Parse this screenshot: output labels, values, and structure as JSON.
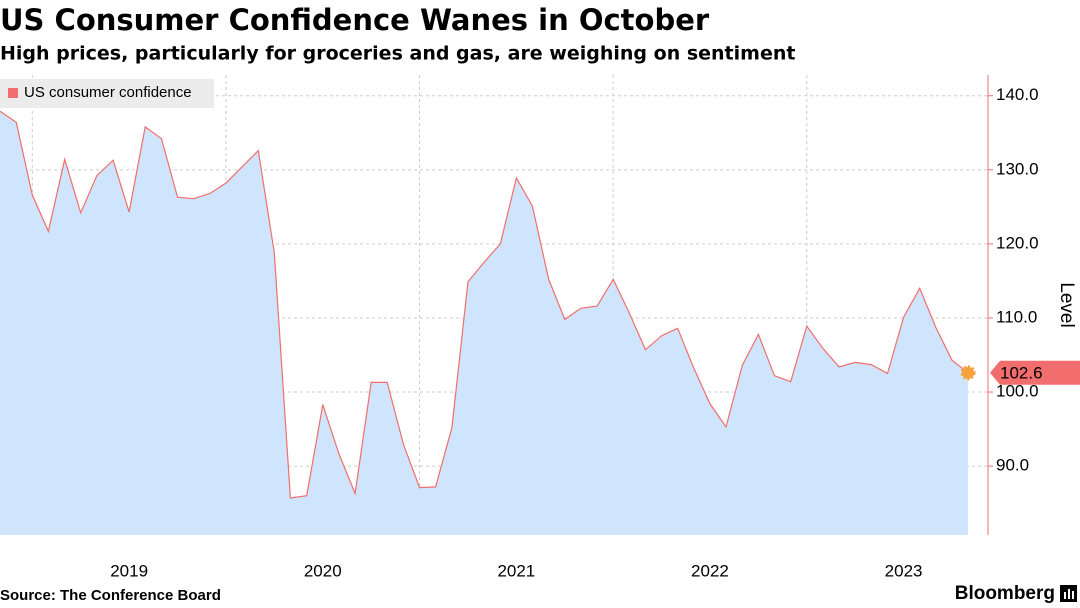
{
  "chart_data": {
    "type": "area",
    "title": "US Consumer Confidence Wanes in October",
    "subtitle": "High prices, particularly for groceries and gas, are weighing on sentiment",
    "y_axis_label": "Level",
    "source": "Source: The Conference Board",
    "brand": "Bloomberg",
    "legend": "top-left",
    "grid": true,
    "x": [
      2018.833,
      2018.917,
      2019.0,
      2019.083,
      2019.167,
      2019.25,
      2019.333,
      2019.417,
      2019.5,
      2019.583,
      2019.667,
      2019.75,
      2019.833,
      2019.917,
      2020.0,
      2020.083,
      2020.167,
      2020.25,
      2020.333,
      2020.417,
      2020.5,
      2020.583,
      2020.667,
      2020.75,
      2020.833,
      2020.917,
      2021.0,
      2021.083,
      2021.167,
      2021.25,
      2021.333,
      2021.417,
      2021.5,
      2021.583,
      2021.667,
      2021.75,
      2021.833,
      2021.917,
      2022.0,
      2022.083,
      2022.167,
      2022.25,
      2022.333,
      2022.417,
      2022.5,
      2022.583,
      2022.667,
      2022.75,
      2022.833,
      2022.917,
      2023.0,
      2023.083,
      2023.167,
      2023.25,
      2023.333,
      2023.417,
      2023.5,
      2023.583,
      2023.667,
      2023.75,
      2023.833
    ],
    "series": [
      {
        "name": "US consumer confidence",
        "color": "#f26d6d",
        "fill": "#cfe5fd",
        "values": [
          137.9,
          136.4,
          126.6,
          121.7,
          131.4,
          124.2,
          129.2,
          131.3,
          124.3,
          135.8,
          134.2,
          126.3,
          126.1,
          126.8,
          128.2,
          130.4,
          132.6,
          118.8,
          85.7,
          86.0,
          98.3,
          91.7,
          86.3,
          101.3,
          101.3,
          92.9,
          87.1,
          87.2,
          95.2,
          114.9,
          117.5,
          120.0,
          128.9,
          125.1,
          115.2,
          109.8,
          111.3,
          111.6,
          115.2,
          110.7,
          105.7,
          107.6,
          108.6,
          103.2,
          98.4,
          95.3,
          103.6,
          107.8,
          102.2,
          101.4,
          108.9,
          105.9,
          103.4,
          104.0,
          103.7,
          102.5,
          110.1,
          114.0,
          108.7,
          104.3,
          102.6
        ]
      }
    ],
    "xlim": [
      2018.833,
      2023.936
    ],
    "xgrid": [
      2019,
      2020,
      2021,
      2022,
      2023
    ],
    "xticks": [
      {
        "value": 2019.5,
        "label": "2019"
      },
      {
        "value": 2020.5,
        "label": "2020"
      },
      {
        "value": 2021.5,
        "label": "2021"
      },
      {
        "value": 2022.5,
        "label": "2022"
      },
      {
        "value": 2023.5,
        "label": "2023"
      }
    ],
    "ylim": [
      80.7,
      142.8
    ],
    "yticks": [
      {
        "value": 90,
        "label": "90.0"
      },
      {
        "value": 100,
        "label": "100.0"
      },
      {
        "value": 110,
        "label": "110.0"
      },
      {
        "value": 120,
        "label": "120.0"
      },
      {
        "value": 130,
        "label": "130.0"
      },
      {
        "value": 140,
        "label": "140.0"
      }
    ]
  }
}
